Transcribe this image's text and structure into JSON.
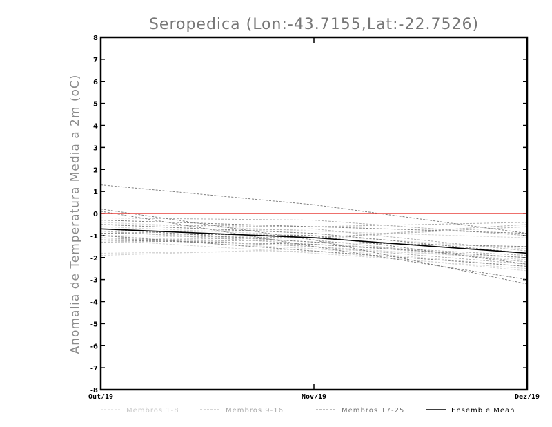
{
  "chart_data": {
    "type": "line",
    "title": "Seropedica (Lon:-43.7155,Lat:-22.7526)",
    "xlabel": "",
    "ylabel": "Anomalia de Temperatura Media a 2m (oC)",
    "x": [
      "Out/19",
      "Nov/19",
      "Dez/19"
    ],
    "ylim": [
      -8,
      8
    ],
    "yticks": [
      "8",
      "7",
      "6",
      "5",
      "4",
      "3",
      "2",
      "1",
      "0",
      "-1",
      "-2",
      "-3",
      "-4",
      "-5",
      "-6",
      "-7",
      "-8"
    ],
    "grid": false,
    "legend_position": "bottom",
    "legend": [
      "Membros 1-8",
      "Membros 9-16",
      "Membros 17-25",
      "Ensemble Mean"
    ],
    "reference_line": {
      "y": 0,
      "color": "#e8413c"
    },
    "series": [
      {
        "group": 0,
        "values": [
          -0.8,
          -1.3,
          -2.2
        ]
      },
      {
        "group": 0,
        "values": [
          -1.1,
          -1.6,
          -2.4
        ]
      },
      {
        "group": 0,
        "values": [
          -1.8,
          -1.7,
          -2.6
        ]
      },
      {
        "group": 0,
        "values": [
          -1.9,
          -1.6,
          -2.0
        ]
      },
      {
        "group": 0,
        "values": [
          -1.0,
          -1.5,
          -2.1
        ]
      },
      {
        "group": 0,
        "values": [
          -0.4,
          -0.8,
          -1.1
        ]
      },
      {
        "group": 0,
        "values": [
          -1.2,
          -1.8,
          -2.5
        ]
      },
      {
        "group": 0,
        "values": [
          -0.6,
          -1.0,
          -1.6
        ]
      },
      {
        "group": 1,
        "values": [
          -0.2,
          -0.3,
          -1.0
        ]
      },
      {
        "group": 1,
        "values": [
          -0.5,
          -0.6,
          -0.4
        ]
      },
      {
        "group": 1,
        "values": [
          -1.0,
          -1.1,
          -0.6
        ]
      },
      {
        "group": 1,
        "values": [
          -0.8,
          -1.4,
          -1.9
        ]
      },
      {
        "group": 1,
        "values": [
          -1.3,
          -1.2,
          -2.2
        ]
      },
      {
        "group": 1,
        "values": [
          -0.9,
          -0.7,
          -1.7
        ]
      },
      {
        "group": 1,
        "values": [
          -1.1,
          -1.5,
          -2.3
        ]
      },
      {
        "group": 1,
        "values": [
          -1.2,
          -1.1,
          -0.5
        ]
      },
      {
        "group": 2,
        "values": [
          1.3,
          0.4,
          -0.9
        ]
      },
      {
        "group": 2,
        "values": [
          0.2,
          -1.2,
          -3.2
        ]
      },
      {
        "group": 2,
        "values": [
          0.1,
          -1.5,
          -3.0
        ]
      },
      {
        "group": 2,
        "values": [
          -0.3,
          -0.6,
          -0.9
        ]
      },
      {
        "group": 2,
        "values": [
          -0.7,
          -1.3,
          -1.5
        ]
      },
      {
        "group": 2,
        "values": [
          -1.0,
          -1.7,
          -2.4
        ]
      },
      {
        "group": 2,
        "values": [
          -0.5,
          -0.9,
          -1.8
        ]
      },
      {
        "group": 2,
        "values": [
          -1.2,
          -1.4,
          -2.0
        ]
      },
      {
        "group": 2,
        "values": [
          -0.9,
          -1.0,
          -2.3
        ]
      },
      {
        "group": 3,
        "name": "Ensemble Mean",
        "values": [
          -0.7,
          -1.1,
          -1.8
        ]
      }
    ],
    "group_styles": [
      {
        "color": "#d2d2d2",
        "dash": "3,2"
      },
      {
        "color": "#adadad",
        "dash": "3,2"
      },
      {
        "color": "#7f7f7f",
        "dash": "3,2"
      },
      {
        "color": "#000000",
        "dash": ""
      }
    ],
    "legend_text_colors": [
      "#c8c8c8",
      "#a8a8a8",
      "#777777",
      "#000000"
    ]
  }
}
